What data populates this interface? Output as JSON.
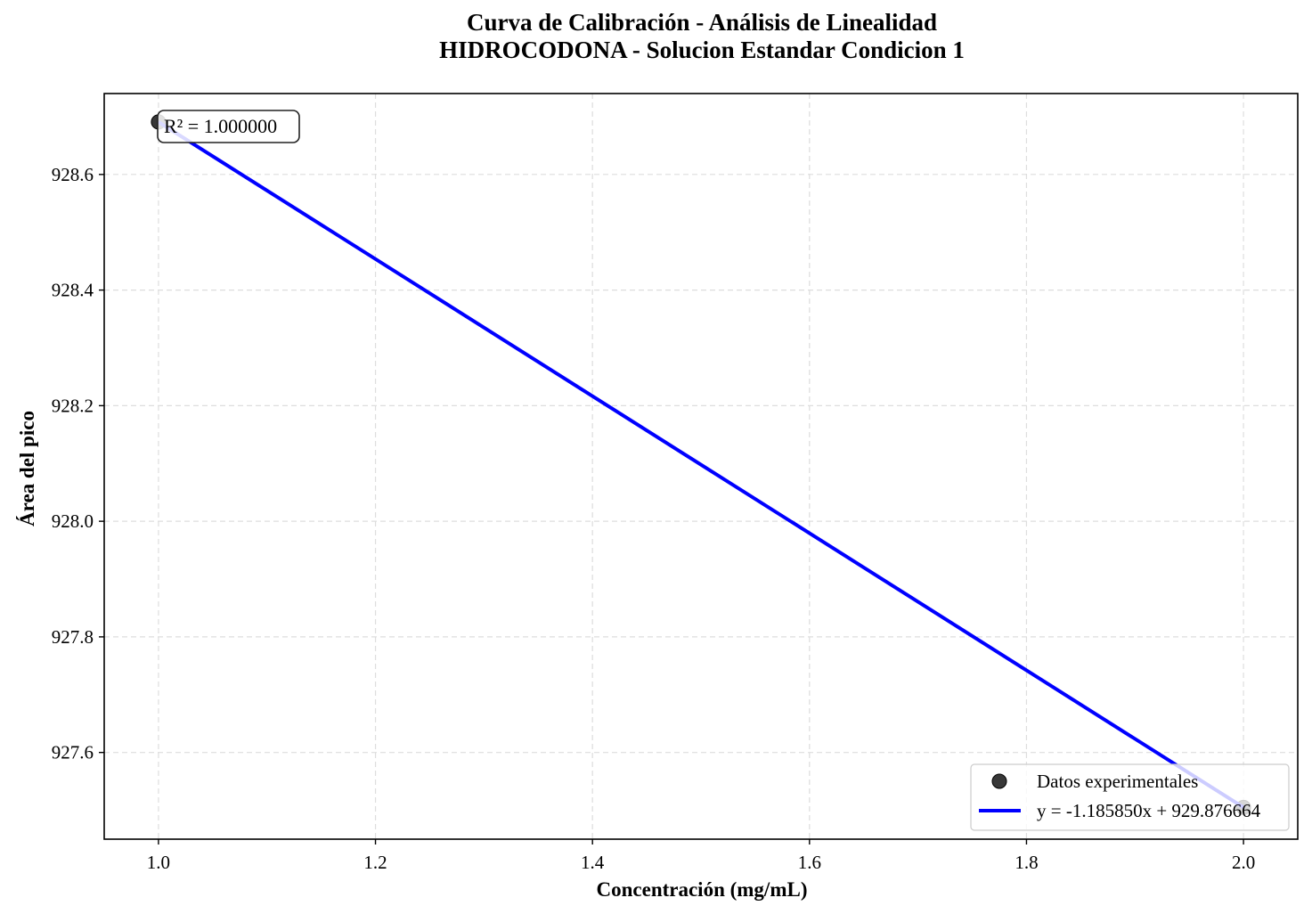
{
  "chart_data": {
    "type": "scatter",
    "title": "Curva de Calibración - Análisis de Linealidad",
    "subtitle": "HIDROCODONA - Solucion Estandar Condicion 1",
    "xlabel": "Concentración (mg/mL)",
    "ylabel": "Área del pico",
    "xlim": [
      0.95,
      2.05
    ],
    "ylim": [
      927.45,
      928.74
    ],
    "xticks": [
      "1.0",
      "1.2",
      "1.4",
      "1.6",
      "1.8",
      "2.0"
    ],
    "xtick_values": [
      1.0,
      1.2,
      1.4,
      1.6,
      1.8,
      2.0
    ],
    "yticks": [
      "927.6",
      "927.8",
      "928.0",
      "928.2",
      "928.4",
      "928.6"
    ],
    "ytick_values": [
      927.6,
      927.8,
      928.0,
      928.2,
      928.4,
      928.6
    ],
    "grid": true,
    "legend_position": "bottom-right",
    "series": [
      {
        "name": "Datos experimentales",
        "kind": "scatter",
        "color": "#222222",
        "points": [
          {
            "x": 1.0,
            "y": 928.690814
          },
          {
            "x": 2.0,
            "y": 927.504964
          }
        ]
      },
      {
        "name": "y = -1.185850x + 929.876664",
        "kind": "line",
        "color": "#0000ff",
        "slope": -1.18585,
        "intercept": 929.876664,
        "x_range": [
          1.0,
          2.0
        ]
      }
    ],
    "annotation": "R² = 1.000000"
  }
}
